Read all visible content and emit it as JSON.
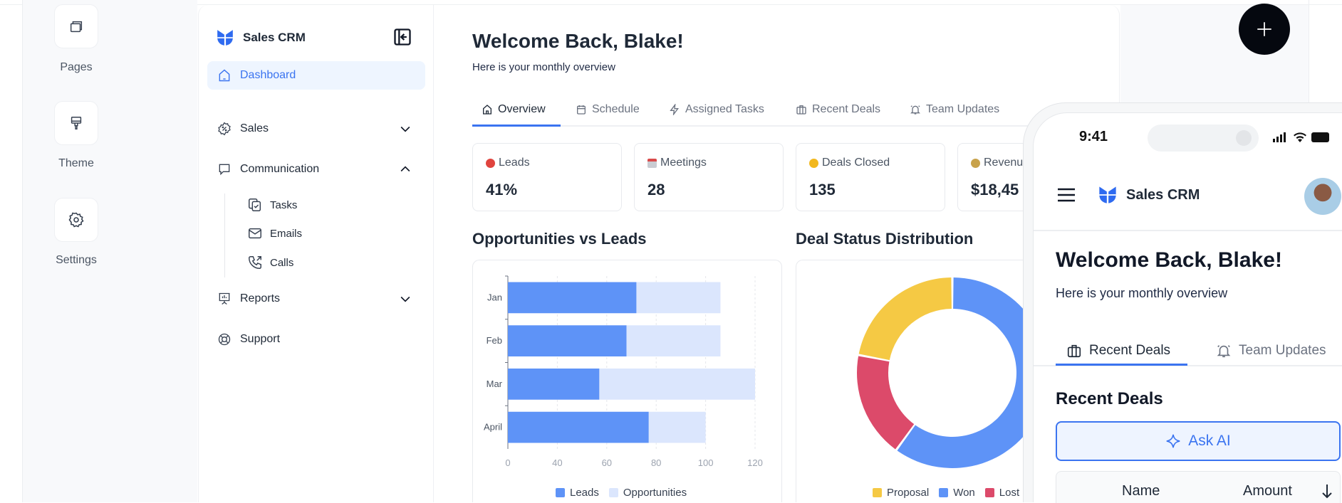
{
  "rail": {
    "items": [
      {
        "label": "Pages",
        "icon": "pages-icon"
      },
      {
        "label": "Theme",
        "icon": "paint-brush-icon"
      },
      {
        "label": "Settings",
        "icon": "gear-icon"
      }
    ]
  },
  "sidebar": {
    "app_name": "Sales CRM",
    "items": [
      {
        "label": "Dashboard"
      },
      {
        "label": "Sales"
      },
      {
        "label": "Communication"
      },
      {
        "label": "Reports"
      },
      {
        "label": "Support"
      }
    ],
    "sub_items": [
      {
        "label": "Tasks"
      },
      {
        "label": "Emails"
      },
      {
        "label": "Calls"
      }
    ]
  },
  "main": {
    "title": "Welcome Back, Blake!",
    "subtitle": "Here is your monthly overview",
    "tabs": [
      {
        "label": "Overview"
      },
      {
        "label": "Schedule"
      },
      {
        "label": "Assigned Tasks"
      },
      {
        "label": "Recent Deals"
      },
      {
        "label": "Team Updates"
      }
    ],
    "stats": [
      {
        "label": "Leads",
        "value": "41%"
      },
      {
        "label": "Meetings",
        "value": "28"
      },
      {
        "label": "Deals Closed",
        "value": "135"
      },
      {
        "label": "Revenue",
        "value": "$18,45"
      }
    ],
    "bar_section_title": "Opportunities vs Leads",
    "donut_section_title": "Deal Status Distribution"
  },
  "chart_data": [
    {
      "type": "bar",
      "orientation": "horizontal",
      "stacked": true,
      "title": "Opportunities vs Leads",
      "categories": [
        "Jan",
        "Feb",
        "Mar",
        "April"
      ],
      "x_ticks": [
        "0",
        "40",
        "60",
        "80",
        "100",
        "120"
      ],
      "tick_values": [
        0,
        40,
        60,
        80,
        100,
        120
      ],
      "xlim": [
        0,
        120
      ],
      "series": [
        {
          "name": "Leads",
          "values": [
            72,
            68,
            57,
            77
          ],
          "color": "#5e93f7"
        },
        {
          "name": "Opportunities",
          "values": [
            34,
            38,
            63,
            23
          ],
          "color": "#dbe6fd"
        }
      ],
      "grid": true,
      "legend": "bottom"
    },
    {
      "type": "pie",
      "donut": true,
      "title": "Deal Status Distribution",
      "slices": [
        {
          "label": "Won",
          "value": 60,
          "color": "#5e93f7"
        },
        {
          "label": "Lost",
          "value": 18,
          "color": "#dc4a6a"
        },
        {
          "label": "Proposal",
          "value": 22,
          "color": "#f5c944"
        }
      ],
      "legend_order": [
        "Proposal",
        "Won",
        "Lost"
      ],
      "legend": "bottom"
    }
  ],
  "phone": {
    "time": "9:41",
    "app_name": "Sales CRM",
    "title": "Welcome Back, Blake!",
    "subtitle": "Here is your monthly overview",
    "tabs": [
      {
        "label": "Recent Deals"
      },
      {
        "label": "Team Updates"
      }
    ],
    "section_title": "Recent Deals",
    "ask_ai_label": "Ask AI",
    "table_headers": [
      "Name",
      "Amount"
    ]
  },
  "colors": {
    "accent": "#3b74f0",
    "leads": "#5e93f7",
    "opportunities": "#dbe6fd",
    "proposal": "#f5c944",
    "lost": "#dc4a6a"
  }
}
